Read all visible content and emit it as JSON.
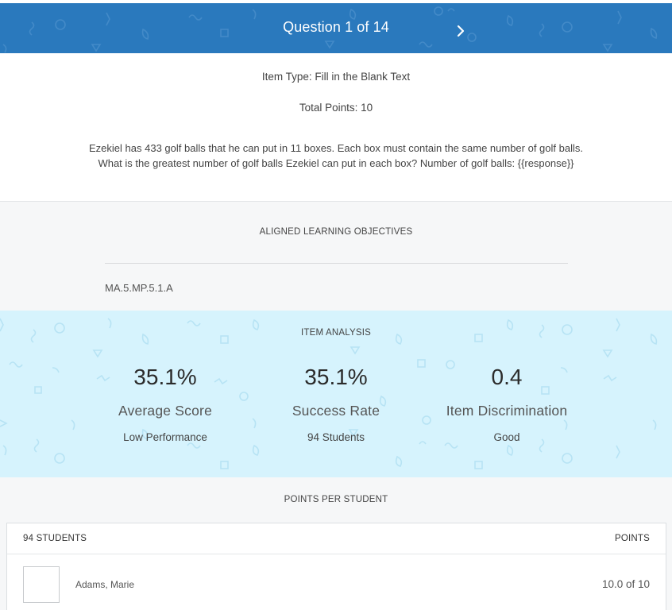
{
  "header": {
    "title": "Question 1 of 14",
    "next_icon": "chevron-right-icon",
    "bg_color": "#2a79bd"
  },
  "item": {
    "type_label": "Item Type: Fill in the Blank Text",
    "total_points": "Total Points: 10",
    "question_line1": "Ezekiel has 433 golf balls that he can put in 11 boxes. Each box must contain the same number of golf balls.",
    "question_line2": "What is the greatest number of golf balls Ezekiel can put in each box? Number of golf balls: {{response}}"
  },
  "objectives": {
    "title": "ALIGNED LEARNING OBJECTIVES",
    "items": [
      "MA.5.MP.5.1.A"
    ]
  },
  "analysis": {
    "title": "ITEM ANALYSIS",
    "bg_color": "#d6f3fd",
    "stats": [
      {
        "value": "35.1%",
        "label": "Average Score",
        "sub": "Low Performance"
      },
      {
        "value": "35.1%",
        "label": "Success Rate",
        "sub": "94 Students"
      },
      {
        "value": "0.4",
        "label": "Item Discrimination",
        "sub": "Good"
      }
    ]
  },
  "points_per_student": {
    "title": "POINTS PER STUDENT",
    "students_header": "94 STUDENTS",
    "points_header": "POINTS",
    "rows": [
      {
        "name": "Adams, Marie",
        "points": "10.0 of 10"
      }
    ]
  }
}
